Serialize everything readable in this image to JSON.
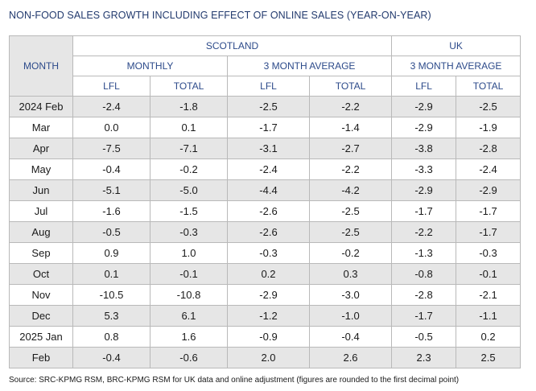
{
  "title": "NON-FOOD SALES GROWTH INCLUDING EFFECT OF ONLINE SALES (YEAR-ON-YEAR)",
  "headers": {
    "month": "MONTH",
    "scotland": "SCOTLAND",
    "uk": "UK",
    "monthly": "MONTHLY",
    "three_month_avg_scotland": "3 MONTH AVERAGE",
    "three_month_avg_uk": "3 MONTH AVERAGE",
    "lfl": "LFL",
    "total": "TOTAL"
  },
  "rows": [
    {
      "month": "2024 Feb",
      "sc_m_lfl": "-2.4",
      "sc_m_total": "-1.8",
      "sc_3m_lfl": "-2.5",
      "sc_3m_total": "-2.2",
      "uk_3m_lfl": "-2.9",
      "uk_3m_total": "-2.5"
    },
    {
      "month": "Mar",
      "sc_m_lfl": "0.0",
      "sc_m_total": "0.1",
      "sc_3m_lfl": "-1.7",
      "sc_3m_total": "-1.4",
      "uk_3m_lfl": "-2.9",
      "uk_3m_total": "-1.9"
    },
    {
      "month": "Apr",
      "sc_m_lfl": "-7.5",
      "sc_m_total": "-7.1",
      "sc_3m_lfl": "-3.1",
      "sc_3m_total": "-2.7",
      "uk_3m_lfl": "-3.8",
      "uk_3m_total": "-2.8"
    },
    {
      "month": "May",
      "sc_m_lfl": "-0.4",
      "sc_m_total": "-0.2",
      "sc_3m_lfl": "-2.4",
      "sc_3m_total": "-2.2",
      "uk_3m_lfl": "-3.3",
      "uk_3m_total": "-2.4"
    },
    {
      "month": "Jun",
      "sc_m_lfl": "-5.1",
      "sc_m_total": "-5.0",
      "sc_3m_lfl": "-4.4",
      "sc_3m_total": "-4.2",
      "uk_3m_lfl": "-2.9",
      "uk_3m_total": "-2.9"
    },
    {
      "month": "Jul",
      "sc_m_lfl": "-1.6",
      "sc_m_total": "-1.5",
      "sc_3m_lfl": "-2.6",
      "sc_3m_total": "-2.5",
      "uk_3m_lfl": "-1.7",
      "uk_3m_total": "-1.7"
    },
    {
      "month": "Aug",
      "sc_m_lfl": "-0.5",
      "sc_m_total": "-0.3",
      "sc_3m_lfl": "-2.6",
      "sc_3m_total": "-2.5",
      "uk_3m_lfl": "-2.2",
      "uk_3m_total": "-1.7"
    },
    {
      "month": "Sep",
      "sc_m_lfl": "0.9",
      "sc_m_total": "1.0",
      "sc_3m_lfl": "-0.3",
      "sc_3m_total": "-0.2",
      "uk_3m_lfl": "-1.3",
      "uk_3m_total": "-0.3"
    },
    {
      "month": "Oct",
      "sc_m_lfl": "0.1",
      "sc_m_total": "-0.1",
      "sc_3m_lfl": "0.2",
      "sc_3m_total": "0.3",
      "uk_3m_lfl": "-0.8",
      "uk_3m_total": "-0.1"
    },
    {
      "month": "Nov",
      "sc_m_lfl": "-10.5",
      "sc_m_total": "-10.8",
      "sc_3m_lfl": "-2.9",
      "sc_3m_total": "-3.0",
      "uk_3m_lfl": "-2.8",
      "uk_3m_total": "-2.1"
    },
    {
      "month": "Dec",
      "sc_m_lfl": "5.3",
      "sc_m_total": "6.1",
      "sc_3m_lfl": "-1.2",
      "sc_3m_total": "-1.0",
      "uk_3m_lfl": "-1.7",
      "uk_3m_total": "-1.1"
    },
    {
      "month": "2025 Jan",
      "sc_m_lfl": "0.8",
      "sc_m_total": "1.6",
      "sc_3m_lfl": "-0.9",
      "sc_3m_total": "-0.4",
      "uk_3m_lfl": "-0.5",
      "uk_3m_total": "0.2"
    },
    {
      "month": "Feb",
      "sc_m_lfl": "-0.4",
      "sc_m_total": "-0.6",
      "sc_3m_lfl": "2.0",
      "sc_3m_total": "2.6",
      "uk_3m_lfl": "2.3",
      "uk_3m_total": "2.5"
    }
  ],
  "source": "Source: SRC-KPMG RSM, BRC-KPMG RSM for UK data and online adjustment (figures are rounded to the first decimal point)"
}
